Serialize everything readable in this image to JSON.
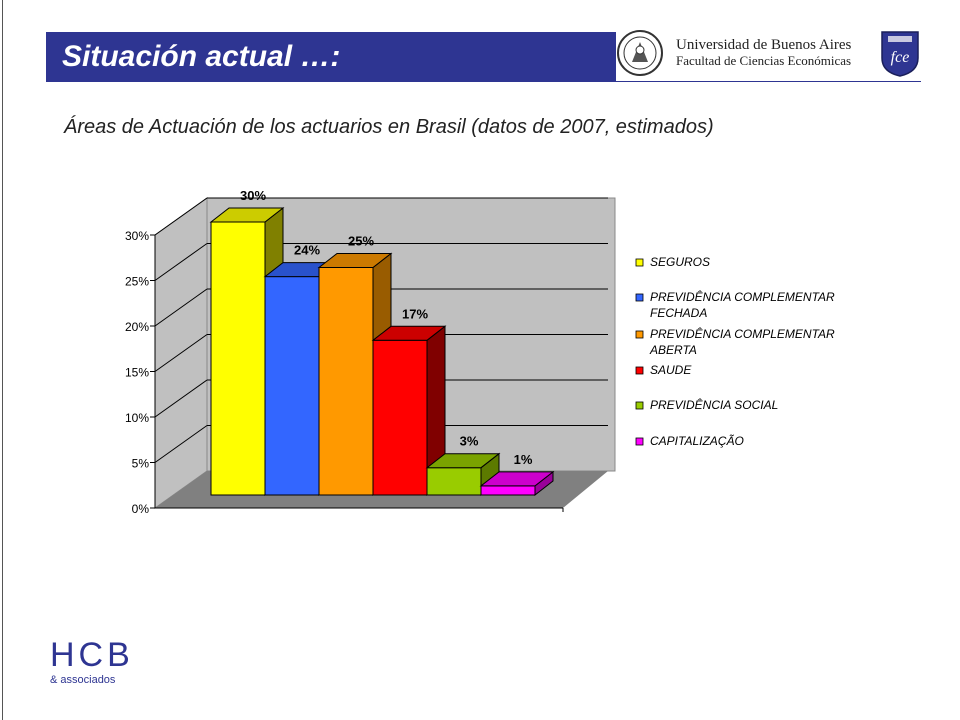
{
  "header": {
    "title": "Situación actual …:",
    "university_line1": "Universidad de Buenos Aires",
    "university_line2": "Facultad de Ciencias Económicas",
    "fce_logo_text": "fce"
  },
  "subtitle": "Áreas de Actuación de los actuarios en Brasil (datos de 2007, estimados)",
  "footer": {
    "hcb_letters": "HCB",
    "hcb_sub": "& associados"
  },
  "colors": {
    "title_bar": "#2e3592",
    "plot_wall": "#c0c0c0",
    "plot_floor": "#808080"
  },
  "chart_data": {
    "type": "bar",
    "style": "3d",
    "categories": [
      "SEGUROS",
      "PREVIDÊNCIA COMPLEMENTAR FECHADA",
      "PREVIDÊNCIA COMPLEMENTAR ABERTA",
      "SAUDE",
      "PREVIDÊNCIA SOCIAL",
      "CAPITALIZAÇÃO"
    ],
    "values": [
      30,
      24,
      25,
      17,
      3,
      1
    ],
    "data_labels": [
      "30%",
      "24%",
      "25%",
      "17%",
      "3%",
      "1%"
    ],
    "colors": [
      "#ffff00",
      "#3366ff",
      "#ff9900",
      "#ff0000",
      "#99cc00",
      "#ff00ff"
    ],
    "side_colors": [
      "#808000",
      "#1f3d99",
      "#995c00",
      "#800000",
      "#5c7a00",
      "#990099"
    ],
    "top_colors": [
      "#cccc00",
      "#2952cc",
      "#cc7a00",
      "#cc0000",
      "#7aa300",
      "#cc00cc"
    ],
    "legend_lines": [
      [
        "SEGUROS"
      ],
      [
        "PREVIDÊNCIA COMPLEMENTAR",
        "FECHADA"
      ],
      [
        "PREVIDÊNCIA COMPLEMENTAR",
        "ABERTA"
      ],
      [
        "SAUDE"
      ],
      [
        "PREVIDÊNCIA SOCIAL"
      ],
      [
        "CAPITALIZAÇÃO"
      ]
    ],
    "yticks": [
      "0%",
      "5%",
      "10%",
      "15%",
      "20%",
      "25%",
      "30%"
    ],
    "ylim": [
      0,
      30
    ],
    "grid": true,
    "legend_position": "right"
  }
}
